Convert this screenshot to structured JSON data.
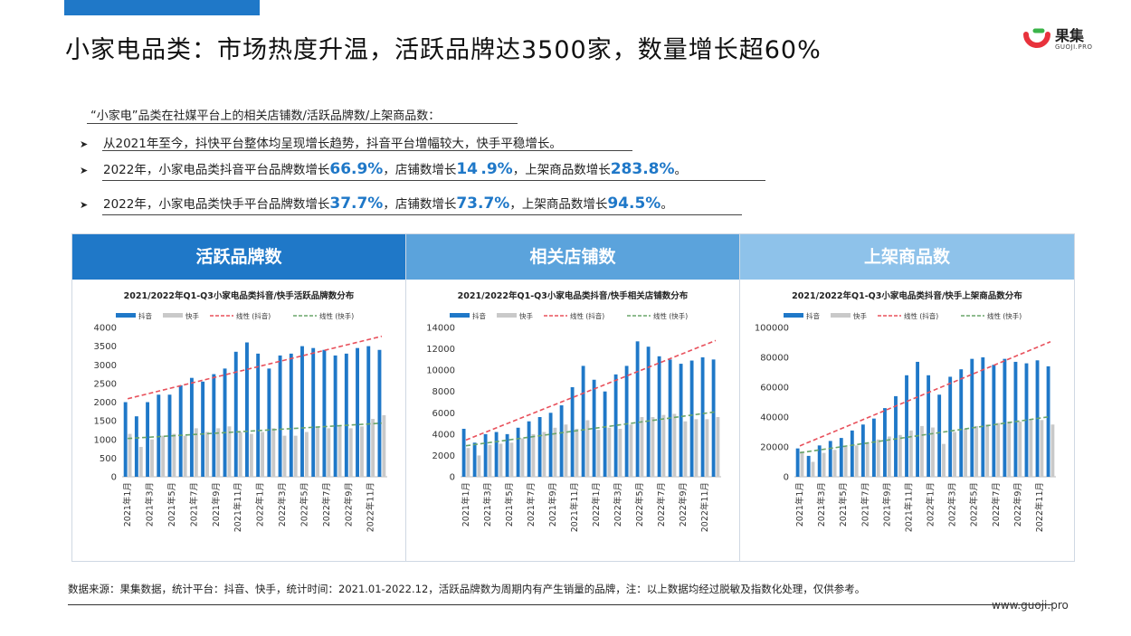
{
  "header": {
    "title": "小家电品类：市场热度升温，活跃品牌达3500家，数量增长超60%",
    "brand_cn": "果集",
    "brand_en": "GUOJI.PRO",
    "accent": "#1f78c8"
  },
  "intro": "“小家电”品类在社媒平台上的相关店铺数/活跃品牌数/上架商品数：",
  "bullets": [
    {
      "segments": [
        {
          "t": "从2021年至今，抖快平台整体均呈现增长趋势，抖音平台增幅较大，快手平稳增长。",
          "hl": false
        }
      ]
    },
    {
      "segments": [
        {
          "t": "2022年，小家电品类抖音平台品牌数增长",
          "hl": false
        },
        {
          "t": "66.9%",
          "hl": true
        },
        {
          "t": "，店铺数增长",
          "hl": false
        },
        {
          "t": "14 .9%",
          "hl": true
        },
        {
          "t": "，上架商品数增长",
          "hl": false
        },
        {
          "t": "283.8%",
          "hl": true
        },
        {
          "t": "。",
          "hl": false
        }
      ]
    },
    {
      "segments": [
        {
          "t": "2022年，小家电品类快手平台品牌数增长",
          "hl": false
        },
        {
          "t": "37.7%",
          "hl": true
        },
        {
          "t": "，店铺数增长",
          "hl": false
        },
        {
          "t": "73.7%",
          "hl": true
        },
        {
          "t": "，上架商品数增长",
          "hl": false
        },
        {
          "t": "94.5%",
          "hl": true
        },
        {
          "t": "。",
          "hl": false
        }
      ]
    }
  ],
  "source": "数据来源：果集数据，统计平台：抖音、快手，统计时间：2021.01-2022.12，活跃品牌数为周期内有产生销量的品牌，注：以上数据均经过脱敏及指数化处理，仅供参考。",
  "url": "www.guoji.pro",
  "panels": [
    {
      "heading": "活跃品牌数",
      "head_color": "#1f78c8"
    },
    {
      "heading": "相关店铺数",
      "head_color": "#5ba3dc"
    },
    {
      "heading": "上架商品数",
      "head_color": "#8ec2ea"
    }
  ],
  "colors": {
    "douyin": "#1f78c8",
    "kuaishou": "#c9c9c9",
    "trend_douyin": "#e8505b",
    "trend_kuaishou": "#6aa56a"
  },
  "chart_data": [
    {
      "type": "bar",
      "title": "2021/2022年Q1-Q3小家电品类抖音/快手活跃品牌数分布",
      "categories": [
        "2021年1月",
        "2021年2月",
        "2021年3月",
        "2021年4月",
        "2021年5月",
        "2021年6月",
        "2021年7月",
        "2021年8月",
        "2021年9月",
        "2021年10月",
        "2021年11月",
        "2021年12月",
        "2022年1月",
        "2022年2月",
        "2022年3月",
        "2022年4月",
        "2022年5月",
        "2022年6月",
        "2022年7月",
        "2022年8月",
        "2022年9月",
        "2022年10月",
        "2022年11月",
        "2022年12月"
      ],
      "tick_labels": [
        "2021年1月",
        "",
        "2021年3月",
        "",
        "2021年5月",
        "",
        "2021年7月",
        "",
        "2021年9月",
        "",
        "2021年11月",
        "",
        "2022年1月",
        "",
        "2022年3月",
        "",
        "2022年5月",
        "",
        "2022年7月",
        "",
        "2022年9月",
        "",
        "2022年11月",
        ""
      ],
      "series": [
        {
          "name": "抖音",
          "values": [
            2000,
            1620,
            2000,
            2200,
            2200,
            2450,
            2650,
            2550,
            2750,
            2900,
            3350,
            3600,
            3300,
            2900,
            3250,
            3300,
            3500,
            3450,
            3400,
            3250,
            3300,
            3450,
            3500,
            3400
          ]
        },
        {
          "name": "快手",
          "values": [
            1150,
            800,
            1000,
            1100,
            1150,
            1100,
            1300,
            1200,
            1300,
            1350,
            1200,
            1150,
            1200,
            1300,
            1100,
            1100,
            1200,
            1350,
            1300,
            1350,
            1300,
            1350,
            1550,
            1650
          ]
        }
      ],
      "trend_names": [
        "线性 (抖音)",
        "线性 (快手)"
      ],
      "ylim": [
        0,
        4000
      ],
      "yticks": [
        0,
        500,
        1000,
        1500,
        2000,
        2500,
        3000,
        3500,
        4000
      ],
      "ytick_labels": [
        "0",
        "500",
        "1000",
        "1500",
        "2000",
        "2500",
        "3000",
        "3500",
        "4000"
      ]
    },
    {
      "type": "bar",
      "title": "2021/2022年Q1-Q3小家电品类抖音/快手相关店铺数分布",
      "categories": [
        "2021年1月",
        "2021年2月",
        "2021年3月",
        "2021年4月",
        "2021年5月",
        "2021年6月",
        "2021年7月",
        "2021年8月",
        "2021年9月",
        "2021年10月",
        "2021年11月",
        "2021年12月",
        "2022年1月",
        "2022年2月",
        "2022年3月",
        "2022年4月",
        "2022年5月",
        "2022年6月",
        "2022年7月",
        "2022年8月",
        "2022年9月",
        "2022年10月",
        "2022年11月",
        "2022年12月"
      ],
      "tick_labels": [
        "2021年1月",
        "",
        "2021年3月",
        "",
        "2021年5月",
        "",
        "2021年7月",
        "",
        "2021年9月",
        "",
        "2021年11月",
        "",
        "2022年1月",
        "",
        "2022年3月",
        "",
        "2022年5月",
        "",
        "2022年7月",
        "",
        "2022年9月",
        "",
        "2022年11月",
        ""
      ],
      "series": [
        {
          "name": "抖音",
          "values": [
            4500,
            3200,
            4000,
            4200,
            4000,
            4600,
            5200,
            5600,
            6000,
            6700,
            8400,
            10400,
            9100,
            8000,
            9600,
            10400,
            12700,
            12200,
            11300,
            11000,
            10600,
            10900,
            11200,
            11000
          ]
        },
        {
          "name": "快手",
          "values": [
            2700,
            2000,
            3000,
            3100,
            3200,
            3600,
            4000,
            4200,
            4600,
            4900,
            4500,
            5300,
            4400,
            4600,
            4500,
            4900,
            5600,
            5600,
            5800,
            5900,
            5200,
            5400,
            5400,
            5600
          ]
        }
      ],
      "trend_names": [
        "线性 (抖音)",
        "线性 (快手)"
      ],
      "ylim": [
        0,
        14000
      ],
      "yticks": [
        0,
        2000,
        4000,
        6000,
        8000,
        10000,
        12000,
        14000
      ],
      "ytick_labels": [
        "0",
        "2000",
        "4000",
        "6000",
        "8000",
        "10000",
        "12000",
        "14000"
      ]
    },
    {
      "type": "bar",
      "title": "2021/2022年Q1-Q3小家电品类抖音/快手上架商品数分布",
      "categories": [
        "2021年1月",
        "2021年2月",
        "2021年3月",
        "2021年4月",
        "2021年5月",
        "2021年6月",
        "2021年7月",
        "2021年8月",
        "2021年9月",
        "2021年10月",
        "2021年11月",
        "2021年12月",
        "2022年1月",
        "2022年2月",
        "2022年3月",
        "2022年4月",
        "2022年5月",
        "2022年6月",
        "2022年7月",
        "2022年8月",
        "2022年9月",
        "2022年10月",
        "2022年11月",
        "2022年12月"
      ],
      "tick_labels": [
        "2021年1月",
        "",
        "2021年3月",
        "",
        "2021年5月",
        "",
        "2021年7月",
        "",
        "2021年9月",
        "",
        "2021年11月",
        "",
        "2022年1月",
        "",
        "2022年3月",
        "",
        "2022年5月",
        "",
        "2022年7月",
        "",
        "2022年9月",
        "",
        "2022年11月",
        ""
      ],
      "series": [
        {
          "name": "抖音",
          "values": [
            19000,
            14000,
            21000,
            24000,
            26000,
            31000,
            35000,
            39000,
            46000,
            54000,
            68000,
            77000,
            68000,
            55000,
            67000,
            72000,
            79000,
            80000,
            75000,
            79000,
            77000,
            76000,
            78000,
            74000
          ]
        },
        {
          "name": "快手",
          "values": [
            17000,
            10000,
            16000,
            18000,
            20000,
            21000,
            23000,
            25000,
            27000,
            28000,
            31000,
            34000,
            33000,
            22000,
            30000,
            32000,
            34000,
            35000,
            36000,
            37000,
            37000,
            38000,
            38000,
            35000
          ]
        }
      ],
      "trend_names": [
        "线性 (抖音)",
        "线性 (快手)"
      ],
      "ylim": [
        0,
        100000
      ],
      "yticks": [
        0,
        20000,
        40000,
        60000,
        80000,
        100000
      ],
      "ytick_labels": [
        "0",
        "20000",
        "40000",
        "60000",
        "80000",
        "100000"
      ]
    }
  ]
}
